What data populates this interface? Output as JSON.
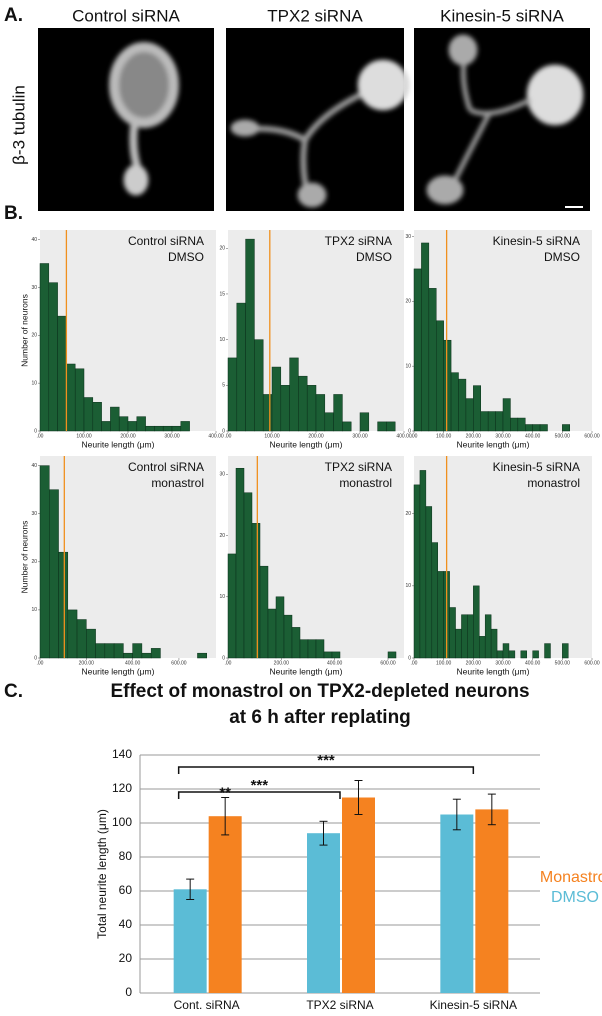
{
  "panel_a": {
    "label": "A.",
    "stain": "β-3 tubulin",
    "images": [
      "Control siRNA",
      "TPX2 siRNA",
      "Kinesin-5 siRNA"
    ]
  },
  "panel_b": {
    "label": "B."
  },
  "panel_c": {
    "label": "C."
  },
  "chart_data": [
    {
      "type": "histogram",
      "title": "Control siRNA",
      "subtitle": "DMSO",
      "x_label": "Neurite length (μm)",
      "y_label": "Number of neurons",
      "bins": [
        0,
        20,
        40,
        60,
        80,
        100,
        120,
        140,
        160,
        180,
        200,
        220,
        240,
        260,
        280,
        300,
        320,
        340
      ],
      "counts": [
        35,
        31,
        24,
        14,
        13,
        7,
        6,
        2,
        5,
        3,
        2,
        3,
        1,
        1,
        1,
        1,
        2
      ],
      "mean_line": 60,
      "color": "#1b5e34",
      "line_color": "#f0901e",
      "xlim": [
        0,
        400
      ],
      "xticks": [
        {
          "value": 0,
          "label": ".00"
        },
        {
          "value": 100,
          "label": "100.00"
        },
        {
          "value": 200,
          "label": "200.00"
        },
        {
          "value": 300,
          "label": "300.00"
        },
        {
          "value": 400,
          "label": "400.00"
        }
      ],
      "ylim": [
        0,
        42
      ],
      "yticks": [
        0,
        10,
        20,
        30,
        40
      ]
    },
    {
      "type": "histogram",
      "title": "TPX2 siRNA",
      "subtitle": "DMSO",
      "x_label": "Neurite length (μm)",
      "bins": [
        0,
        20,
        40,
        60,
        80,
        100,
        120,
        140,
        160,
        180,
        200,
        220,
        240,
        260,
        280,
        300,
        320,
        340,
        360,
        380
      ],
      "counts": [
        8,
        14,
        21,
        10,
        4,
        7,
        5,
        8,
        6,
        5,
        4,
        2,
        4,
        1,
        0,
        2,
        0,
        1,
        1
      ],
      "mean_line": 95,
      "color": "#1b5e34",
      "line_color": "#f0901e",
      "xlim": [
        0,
        400
      ],
      "xticks": [
        {
          "value": 0,
          "label": ".00"
        },
        {
          "value": 100,
          "label": "100.00"
        },
        {
          "value": 200,
          "label": "200.00"
        },
        {
          "value": 300,
          "label": "300.00"
        },
        {
          "value": 400,
          "label": "400.00"
        }
      ],
      "ylim": [
        0,
        22
      ],
      "yticks": [
        0,
        5,
        10,
        15,
        20
      ]
    },
    {
      "type": "histogram",
      "title": "Kinesin-5 siRNA",
      "subtitle": "DMSO",
      "x_label": "Neurite length (μm)",
      "bins": [
        0,
        25,
        50,
        75,
        100,
        125,
        150,
        175,
        200,
        225,
        250,
        275,
        300,
        325,
        350,
        375,
        400,
        425,
        450,
        475,
        500,
        525
      ],
      "counts": [
        25,
        29,
        22,
        17,
        14,
        9,
        8,
        5,
        7,
        3,
        3,
        3,
        5,
        2,
        2,
        1,
        1,
        1,
        0,
        0,
        1
      ],
      "mean_line": 110,
      "color": "#1b5e34",
      "line_color": "#f0901e",
      "xlim": [
        0,
        600
      ],
      "xticks": [
        {
          "value": 0,
          "label": ".00"
        },
        {
          "value": 100,
          "label": "100.00"
        },
        {
          "value": 200,
          "label": "200.00"
        },
        {
          "value": 300,
          "label": "300.00"
        },
        {
          "value": 400,
          "label": "400.00"
        },
        {
          "value": 500,
          "label": "500.00"
        },
        {
          "value": 600,
          "label": "600.00"
        }
      ],
      "ylim": [
        0,
        31
      ],
      "yticks": [
        0,
        10,
        20,
        30
      ]
    },
    {
      "type": "histogram",
      "title": "Control siRNA",
      "subtitle": "monastrol",
      "x_label": "Neurite length (μm)",
      "y_label": "Number of neurons",
      "bins": [
        0,
        40,
        80,
        120,
        160,
        200,
        240,
        280,
        320,
        360,
        400,
        440,
        480,
        520,
        560,
        600,
        640,
        680,
        720
      ],
      "counts": [
        40,
        35,
        22,
        10,
        8,
        6,
        3,
        3,
        3,
        1,
        3,
        1,
        2,
        0,
        0,
        0,
        0,
        1
      ],
      "mean_line": 105,
      "color": "#1b5e34",
      "line_color": "#f0901e",
      "xlim": [
        0,
        760
      ],
      "xticks": [
        {
          "value": 0,
          "label": ".00"
        },
        {
          "value": 200,
          "label": "200.00"
        },
        {
          "value": 400,
          "label": "400.00"
        },
        {
          "value": 600,
          "label": "600.00"
        }
      ],
      "ylim": [
        0,
        42
      ],
      "yticks": [
        0,
        10,
        20,
        30,
        40
      ]
    },
    {
      "type": "histogram",
      "title": "TPX2 siRNA",
      "subtitle": "monastrol",
      "x_label": "Neurite length (μm)",
      "bins": [
        0,
        30,
        60,
        90,
        120,
        150,
        180,
        210,
        240,
        270,
        300,
        330,
        360,
        390,
        420,
        450,
        480,
        510,
        540,
        570,
        600,
        630
      ],
      "counts": [
        17,
        31,
        27,
        22,
        15,
        8,
        10,
        7,
        5,
        3,
        3,
        3,
        1,
        1,
        0,
        0,
        0,
        0,
        0,
        0,
        1
      ],
      "mean_line": 110,
      "color": "#1b5e34",
      "line_color": "#f0901e",
      "xlim": [
        0,
        660
      ],
      "xticks": [
        {
          "value": 0,
          "label": ".00"
        },
        {
          "value": 200,
          "label": "200.00"
        },
        {
          "value": 400,
          "label": "400.00"
        },
        {
          "value": 600,
          "label": "600.00"
        }
      ],
      "ylim": [
        0,
        33
      ],
      "yticks": [
        0,
        10,
        20,
        30
      ]
    },
    {
      "type": "histogram",
      "title": "Kinesin-5 siRNA",
      "subtitle": "monastrol",
      "x_label": "Neurite length (μm)",
      "bins": [
        0,
        20,
        40,
        60,
        80,
        100,
        120,
        140,
        160,
        180,
        200,
        220,
        240,
        260,
        280,
        300,
        320,
        340,
        360,
        380,
        400,
        420,
        440,
        460,
        480,
        500,
        520
      ],
      "counts": [
        24,
        26,
        21,
        16,
        12,
        12,
        7,
        4,
        6,
        6,
        10,
        3,
        6,
        4,
        1,
        2,
        1,
        0,
        1,
        0,
        1,
        0,
        2,
        0,
        0,
        2
      ],
      "mean_line": 110,
      "color": "#1b5e34",
      "line_color": "#f0901e",
      "xlim": [
        0,
        600
      ],
      "xticks": [
        {
          "value": 0,
          "label": ".00"
        },
        {
          "value": 100,
          "label": "100.00"
        },
        {
          "value": 200,
          "label": "200.00"
        },
        {
          "value": 300,
          "label": "300.00"
        },
        {
          "value": 400,
          "label": "400.00"
        },
        {
          "value": 500,
          "label": "500.00"
        },
        {
          "value": 600,
          "label": "600.00"
        }
      ],
      "ylim": [
        0,
        28
      ],
      "yticks": [
        0,
        10,
        20
      ]
    },
    {
      "type": "bar",
      "title": "Effect of monastrol on TPX2-depleted neurons",
      "subtitle": "at 6 h after replating",
      "y_label": "Total neurite length (μm)",
      "categories": [
        "Cont. siRNA",
        "TPX2 siRNA",
        "Kinesin-5 siRNA"
      ],
      "series": [
        {
          "name": "DMSO",
          "color": "#5bbcd6",
          "values": [
            61,
            94,
            105
          ],
          "errors": [
            6,
            7,
            9
          ]
        },
        {
          "name": "Monastrol",
          "color": "#f58220",
          "values": [
            104,
            115,
            108
          ],
          "errors": [
            11,
            10,
            9
          ]
        }
      ],
      "ylim": [
        0,
        140
      ],
      "yticks": [
        0,
        20,
        40,
        60,
        80,
        100,
        120,
        140
      ],
      "grid": true,
      "significance": [
        {
          "text": "***",
          "categories": [
            "Cont. siRNA",
            "Kinesin-5 siRNA"
          ]
        },
        {
          "text": "***",
          "categories": [
            "Cont. siRNA",
            "TPX2 siRNA"
          ]
        },
        {
          "text": "**",
          "category": "Cont. siRNA",
          "series": "Monastrol"
        }
      ]
    }
  ]
}
